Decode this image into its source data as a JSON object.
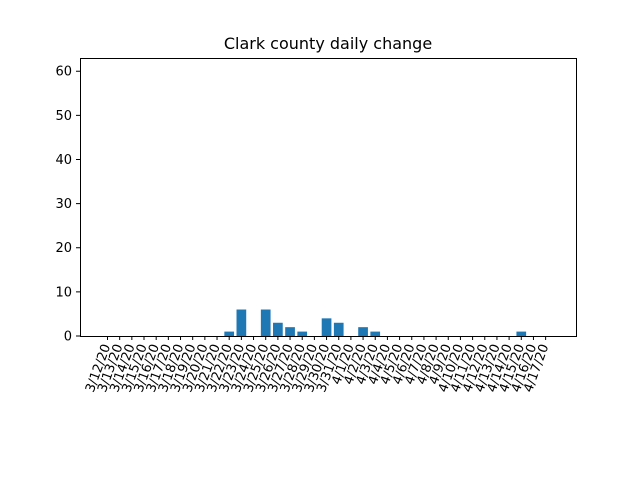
{
  "chart_data": {
    "type": "bar",
    "title": "Clark county daily change",
    "xlabel": "",
    "ylabel": "",
    "ylim": [
      0,
      63
    ],
    "yticks": [
      0,
      10,
      20,
      30,
      40,
      50,
      60
    ],
    "grid": false,
    "bar_color": "#1f77b4",
    "categories": [
      "3/12/20",
      "3/13/20",
      "3/14/20",
      "3/15/20",
      "3/16/20",
      "3/17/20",
      "3/18/20",
      "3/19/20",
      "3/20/20",
      "3/21/20",
      "3/22/20",
      "3/23/20",
      "3/24/20",
      "3/25/20",
      "3/26/20",
      "3/27/20",
      "3/28/20",
      "3/29/20",
      "3/30/20",
      "3/31/20",
      "4/1/20",
      "4/2/20",
      "4/3/20",
      "4/4/20",
      "4/5/20",
      "4/6/20",
      "4/7/20",
      "4/8/20",
      "4/9/20",
      "4/10/20",
      "4/11/20",
      "4/12/20",
      "4/13/20",
      "4/14/20",
      "4/15/20",
      "4/16/20",
      "4/17/20"
    ],
    "values": [
      0,
      0,
      0,
      0,
      0,
      0,
      0,
      0,
      0,
      0,
      1,
      6,
      0,
      6,
      3,
      2,
      1,
      0,
      4,
      3,
      0,
      2,
      1,
      0,
      0,
      0,
      0,
      0,
      0,
      0,
      0,
      0,
      0,
      0,
      1,
      0,
      0
    ]
  }
}
